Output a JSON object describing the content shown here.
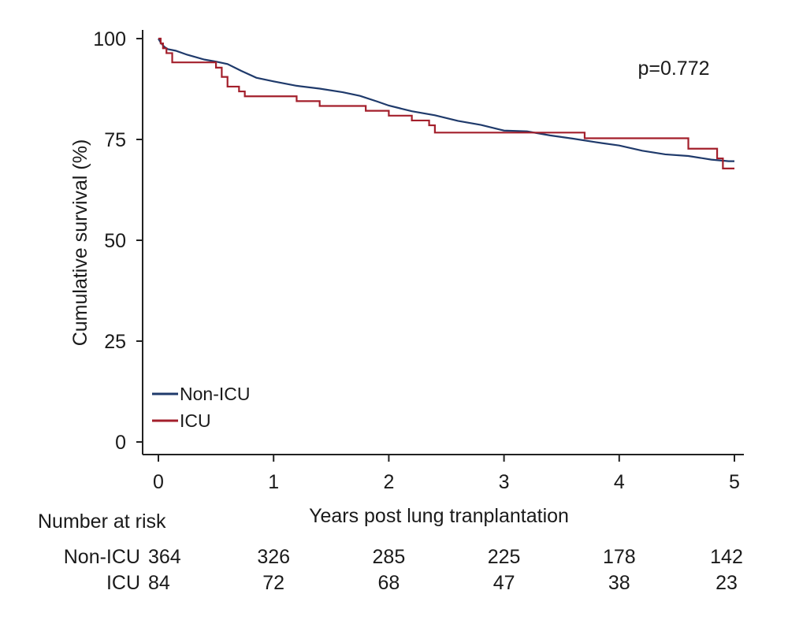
{
  "chart_data": {
    "type": "line",
    "title": "",
    "xlabel": "Years post lung tranplantation",
    "ylabel": "Cumulative survival (%)",
    "xlim": [
      0,
      5
    ],
    "ylim": [
      0,
      100
    ],
    "x_ticks": [
      "0",
      "1",
      "2",
      "3",
      "4",
      "5"
    ],
    "y_ticks": [
      "0",
      "25",
      "50",
      "75",
      "100"
    ],
    "annotation": "p=0.772",
    "legend_position": "bottom-left",
    "series": [
      {
        "name": "Non-ICU",
        "color": "#1f3a6b",
        "step": false,
        "points": [
          [
            0,
            100
          ],
          [
            0.02,
            99
          ],
          [
            0.05,
            98
          ],
          [
            0.08,
            97.4
          ],
          [
            0.15,
            97
          ],
          [
            0.25,
            96
          ],
          [
            0.4,
            94.8
          ],
          [
            0.5,
            94.3
          ],
          [
            0.6,
            93.7
          ],
          [
            0.72,
            92
          ],
          [
            0.85,
            90.3
          ],
          [
            1.0,
            89.4
          ],
          [
            1.2,
            88.3
          ],
          [
            1.4,
            87.6
          ],
          [
            1.6,
            86.7
          ],
          [
            1.75,
            85.8
          ],
          [
            1.9,
            84.4
          ],
          [
            2.0,
            83.4
          ],
          [
            2.2,
            82
          ],
          [
            2.4,
            81
          ],
          [
            2.6,
            79.6
          ],
          [
            2.8,
            78.6
          ],
          [
            3.0,
            77.2
          ],
          [
            3.2,
            77
          ],
          [
            3.4,
            76
          ],
          [
            3.6,
            75.2
          ],
          [
            3.8,
            74.3
          ],
          [
            4.0,
            73.5
          ],
          [
            4.2,
            72.2
          ],
          [
            4.4,
            71.3
          ],
          [
            4.6,
            70.9
          ],
          [
            4.8,
            70
          ],
          [
            4.95,
            69.6
          ],
          [
            5.0,
            69.6
          ]
        ]
      },
      {
        "name": "ICU",
        "color": "#a31f2b",
        "step": true,
        "points": [
          [
            0,
            100
          ],
          [
            0.02,
            98.8
          ],
          [
            0.04,
            97.6
          ],
          [
            0.07,
            96.4
          ],
          [
            0.12,
            94.1
          ],
          [
            0.5,
            92.8
          ],
          [
            0.55,
            90.5
          ],
          [
            0.6,
            88.1
          ],
          [
            0.7,
            86.9
          ],
          [
            0.75,
            85.7
          ],
          [
            1.2,
            84.5
          ],
          [
            1.4,
            83.3
          ],
          [
            1.8,
            82.1
          ],
          [
            2.0,
            80.9
          ],
          [
            2.2,
            79.7
          ],
          [
            2.35,
            78.5
          ],
          [
            2.4,
            76.7
          ],
          [
            3.7,
            75.3
          ],
          [
            3.72,
            75.3
          ],
          [
            4.6,
            72.7
          ],
          [
            4.85,
            70.3
          ],
          [
            4.9,
            67.8
          ],
          [
            5.0,
            67.8
          ]
        ]
      }
    ],
    "risk_table": {
      "title": "Number at risk",
      "time_points": [
        0,
        1,
        2,
        3,
        4,
        5
      ],
      "rows": [
        {
          "label": "Non-ICU",
          "values": [
            "364",
            "326",
            "285",
            "225",
            "178",
            "142"
          ]
        },
        {
          "label": "ICU",
          "values": [
            "84",
            "72",
            "68",
            "47",
            "38",
            "23"
          ]
        }
      ]
    }
  }
}
